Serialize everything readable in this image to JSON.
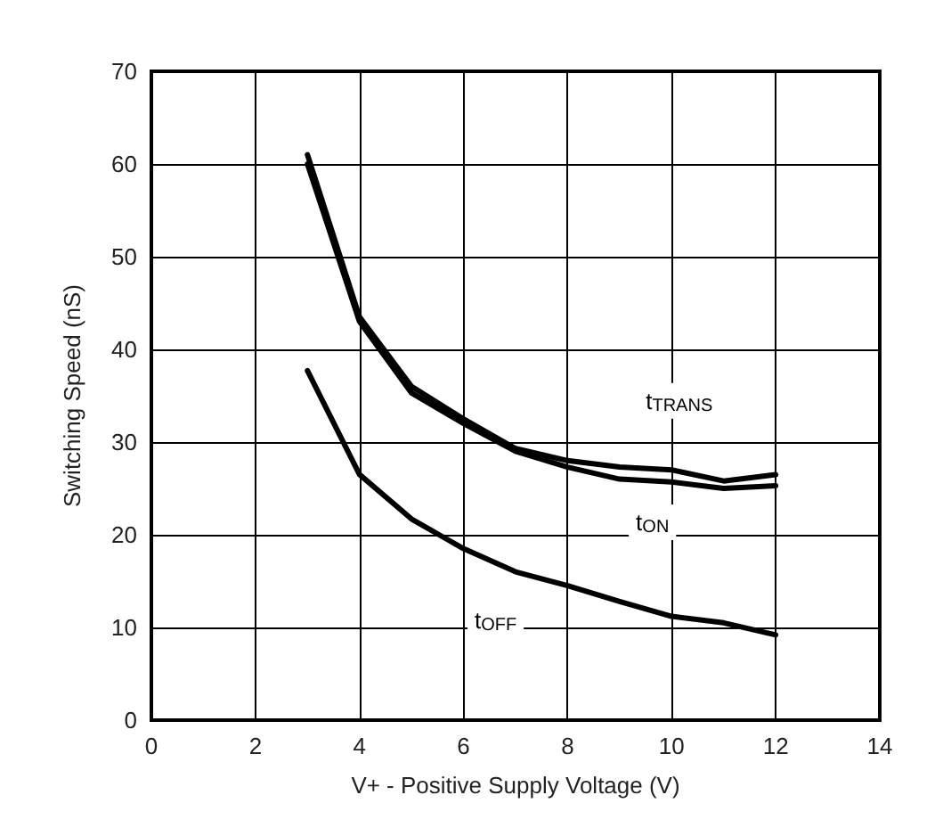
{
  "chart_data": {
    "type": "line",
    "xlabel": "V+ - Positive Supply Voltage (V)",
    "ylabel": "Switching Speed (nS)",
    "x": [
      3,
      4,
      5,
      6,
      7,
      8,
      9,
      10,
      11,
      12
    ],
    "series": [
      {
        "name": "t$_{TRANS}$",
        "color": "#000000",
        "values": [
          61,
          43.5,
          36,
          32.5,
          29.3,
          28,
          27.3,
          27,
          25.8,
          26.5
        ]
      },
      {
        "name": "t$_{ON}$",
        "color": "#000000",
        "values": [
          60,
          43,
          35.3,
          32,
          29,
          27.3,
          26,
          25.7,
          25,
          25.3
        ]
      },
      {
        "name": "t$_{OFF}$",
        "color": "#000000",
        "values": [
          37.7,
          26.5,
          21.7,
          18.5,
          16,
          14.5,
          12.8,
          11.2,
          10.5,
          9.2
        ]
      }
    ],
    "xlim": [
      0,
      14
    ],
    "xticks": [
      0,
      2,
      4,
      6,
      8,
      10,
      12,
      14
    ],
    "ylim": [
      0,
      70
    ],
    "yticks": [
      0,
      10,
      20,
      30,
      40,
      50,
      60,
      70
    ],
    "grid": true,
    "legend": false,
    "marker": "none",
    "line_style": "solid"
  }
}
